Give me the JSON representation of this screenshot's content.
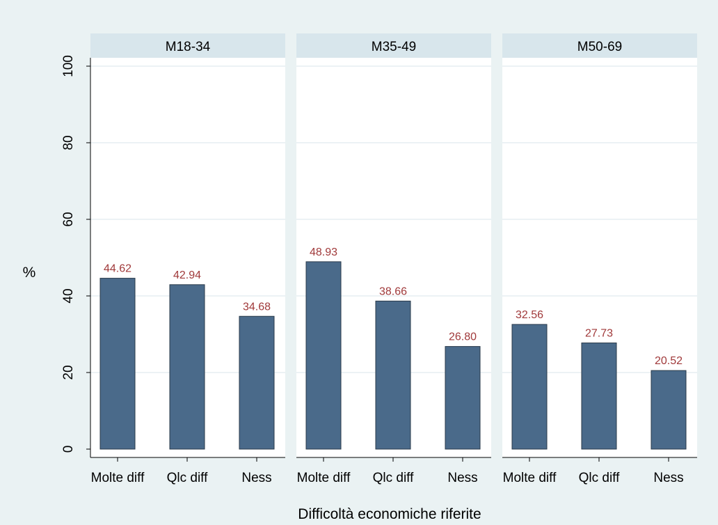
{
  "chart_data": {
    "type": "bar",
    "ylabel": "%",
    "xlabel": "Difficoltà economiche riferite",
    "ylim": [
      0,
      100
    ],
    "yticks": [
      0,
      20,
      40,
      60,
      80,
      100
    ],
    "categories": [
      "Molte diff",
      "Qlc diff",
      "Ness"
    ],
    "panels": [
      {
        "label": "M18-34",
        "values": [
          44.62,
          42.94,
          34.68
        ],
        "value_labels": [
          "44.62",
          "42.94",
          "34.68"
        ]
      },
      {
        "label": "M35-49",
        "values": [
          48.93,
          38.66,
          26.8
        ],
        "value_labels": [
          "48.93",
          "38.66",
          "26.80"
        ]
      },
      {
        "label": "M50-69",
        "values": [
          32.56,
          27.73,
          20.52
        ],
        "value_labels": [
          "32.56",
          "27.73",
          "20.52"
        ]
      }
    ],
    "grid": true,
    "colors": {
      "bar": "#4a6a8a",
      "bar_stroke": "#2a3a4a",
      "value_label": "#a0393a",
      "panel_header": "#d8e6ec",
      "plot_bg": "#ffffff",
      "outer_bg": "#eaf2f3",
      "grid": "#e6eef2"
    }
  }
}
